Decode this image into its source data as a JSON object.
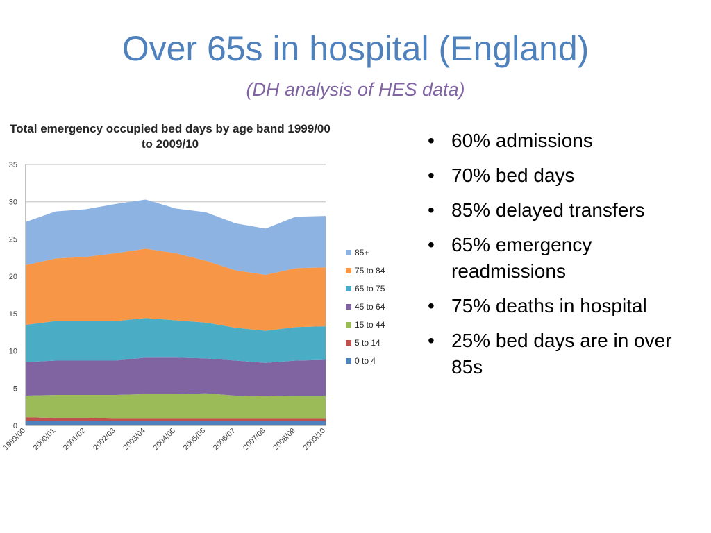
{
  "slide": {
    "title": "Over 65s in hospital (England)",
    "subtitle": "(DH analysis of HES data)"
  },
  "bullets": [
    "60% admissions",
    "70% bed days",
    "85% delayed transfers",
    "65% emergency readmissions",
    "75% deaths in hospital",
    "25% bed days are in over 85s"
  ],
  "chart_data": {
    "type": "area",
    "stacked": true,
    "title": "Total emergency occupied bed days by age band 1999/00 to 2009/10",
    "x": [
      "1999/00",
      "2000/01",
      "2001/02",
      "2002/03",
      "2003/04",
      "2004/05",
      "2005/06",
      "2006/07",
      "2007/08",
      "2008/09",
      "2009/10"
    ],
    "ylim": [
      0,
      35
    ],
    "yticks": [
      0,
      5,
      10,
      15,
      20,
      25,
      30,
      35
    ],
    "grid": true,
    "legend_position": "right",
    "series": [
      {
        "name": "0 to 4",
        "color": "#4f81bd",
        "values": [
          0.6,
          0.6,
          0.6,
          0.6,
          0.6,
          0.6,
          0.6,
          0.6,
          0.6,
          0.6,
          0.6
        ]
      },
      {
        "name": "5 to 14",
        "color": "#c0504d",
        "values": [
          0.5,
          0.4,
          0.4,
          0.3,
          0.3,
          0.3,
          0.3,
          0.3,
          0.3,
          0.3,
          0.3
        ]
      },
      {
        "name": "15 to 44",
        "color": "#9bbb59",
        "values": [
          2.9,
          3.1,
          3.1,
          3.2,
          3.3,
          3.3,
          3.4,
          3.1,
          3.0,
          3.1,
          3.1
        ]
      },
      {
        "name": "45 to 64",
        "color": "#8064a2",
        "values": [
          4.5,
          4.6,
          4.6,
          4.6,
          4.9,
          4.9,
          4.7,
          4.7,
          4.5,
          4.7,
          4.8
        ]
      },
      {
        "name": "65 to 75",
        "color": "#4bacc6",
        "values": [
          5.0,
          5.3,
          5.3,
          5.3,
          5.3,
          5.0,
          4.8,
          4.4,
          4.3,
          4.5,
          4.5
        ]
      },
      {
        "name": "75 to 84",
        "color": "#f79646",
        "values": [
          8.0,
          8.4,
          8.6,
          9.1,
          9.3,
          9.0,
          8.3,
          7.7,
          7.5,
          7.9,
          7.9
        ]
      },
      {
        "name": "85+",
        "color": "#8db3e2",
        "values": [
          5.8,
          6.3,
          6.4,
          6.6,
          6.6,
          6.0,
          6.5,
          6.3,
          6.2,
          6.9,
          6.9
        ]
      }
    ]
  }
}
